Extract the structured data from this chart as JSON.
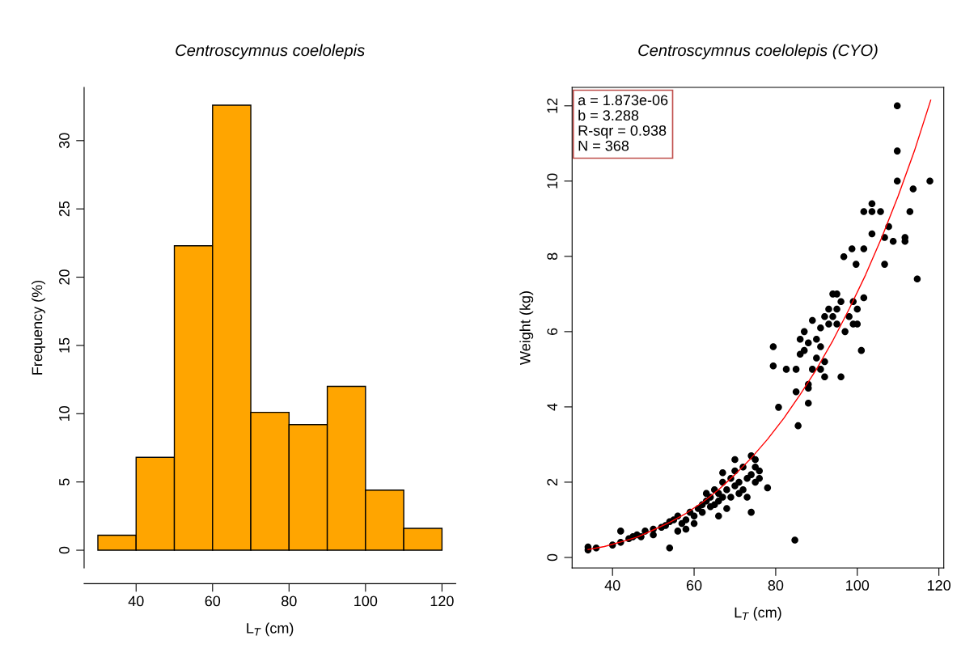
{
  "chart_data": [
    {
      "type": "histogram",
      "title": "Centroscymnus coelolepis",
      "xlabel": "L$_{T}$ (cm)",
      "ylabel": "Frequency (%)",
      "bins": [
        30,
        40,
        50,
        60,
        70,
        80,
        90,
        100,
        110,
        120
      ],
      "values": [
        1.1,
        6.8,
        22.3,
        32.6,
        10.1,
        9.2,
        12.0,
        4.4,
        1.6
      ],
      "color": "#ffa500",
      "xlim": [
        26.4,
        123.6
      ],
      "ylim": [
        -1.3,
        33.9
      ],
      "xticks": [
        40,
        60,
        80,
        100,
        120
      ],
      "yticks": [
        0,
        5,
        10,
        15,
        20,
        25,
        30
      ],
      "grid": false
    },
    {
      "type": "scatter",
      "title": "Centroscymnus coelolepis (CYO)",
      "xlabel": "L$_{T}$ (cm)",
      "ylabel": "Weight (kg)",
      "xlim": [
        30.1,
        121.2
      ],
      "ylim": [
        -0.28,
        12.49
      ],
      "xticks": [
        40,
        60,
        80,
        100,
        120
      ],
      "yticks": [
        0,
        2,
        4,
        6,
        8,
        10,
        12
      ],
      "grid": false,
      "annotations": [
        "a = 1.873e-06",
        "b = 3.288",
        "R-sqr = 0.938",
        "N = 368"
      ],
      "series": [
        {
          "type": "scatter",
          "marker": "circle",
          "color": "#000000",
          "x": [
            34,
            34,
            36,
            40,
            42,
            42,
            44,
            45,
            46,
            47,
            48,
            50,
            50,
            52,
            53,
            54,
            54,
            55,
            56,
            56,
            57,
            58,
            58,
            59,
            60,
            60,
            61,
            62,
            62,
            63,
            63,
            64,
            64,
            65,
            65,
            66,
            66,
            66,
            67,
            67,
            67,
            68,
            68,
            69,
            69,
            70,
            70,
            70,
            71,
            71,
            72,
            72,
            73,
            73,
            74,
            74,
            74,
            75,
            75,
            75,
            76,
            76,
            78,
            79.4,
            79.4,
            80.7,
            82.6,
            84.7,
            85,
            85,
            85.5,
            86,
            86,
            87,
            87,
            88,
            88,
            88,
            88,
            89,
            89,
            90,
            90,
            91,
            91,
            91,
            92,
            92,
            92,
            93,
            93,
            94,
            94,
            95,
            95,
            95,
            96,
            96,
            97,
            96.7,
            98,
            98.7,
            99,
            99,
            99.7,
            100,
            100,
            101,
            101.6,
            101.6,
            101.6,
            103.6,
            103.6,
            103.6,
            105.7,
            106.7,
            106.7,
            107.7,
            108.8,
            109.8,
            109.8,
            109.8,
            111.7,
            111.7,
            112.9,
            113.7,
            114.7,
            117.8
          ],
          "values": [
            0.2,
            0.28,
            0.25,
            0.33,
            0.4,
            0.7,
            0.5,
            0.55,
            0.6,
            0.55,
            0.7,
            0.75,
            0.6,
            0.8,
            0.85,
            0.25,
            0.95,
            1.0,
            0.7,
            1.1,
            0.9,
            1.0,
            0.75,
            1.2,
            1.1,
            0.9,
            1.3,
            1.4,
            1.2,
            1.5,
            1.7,
            1.6,
            1.35,
            1.8,
            1.4,
            1.7,
            1.5,
            1.1,
            2.0,
            1.6,
            2.25,
            1.8,
            1.3,
            2.1,
            1.6,
            2.6,
            1.9,
            2.3,
            1.7,
            2.0,
            2.4,
            1.8,
            2.1,
            1.6,
            2.7,
            2.2,
            1.2,
            2.4,
            2.0,
            2.6,
            2.3,
            2.1,
            1.85,
            5.6,
            5.09,
            3.99,
            5.0,
            0.46,
            5.0,
            4.4,
            3.5,
            5.4,
            5.8,
            5.5,
            6.0,
            5.7,
            4.6,
            4.5,
            4.1,
            5.0,
            6.3,
            5.8,
            5.3,
            6.1,
            5.0,
            5.6,
            6.4,
            5.2,
            4.8,
            6.6,
            6.2,
            7.0,
            6.4,
            6.6,
            7.0,
            6.2,
            6.8,
            4.8,
            6.0,
            7.99,
            6.4,
            8.2,
            6.8,
            6.2,
            7.79,
            6.6,
            6.2,
            5.5,
            9.19,
            8.2,
            6.9,
            9.4,
            9.19,
            8.6,
            9.19,
            8.5,
            7.79,
            8.79,
            8.4,
            12.0,
            10.8,
            10.0,
            8.5,
            8.4,
            9.19,
            9.79,
            7.4,
            10.0
          ]
        },
        {
          "type": "line",
          "color": "#ff0000",
          "x": [
            34,
            38,
            42,
            46,
            50,
            54,
            58,
            62,
            66,
            70,
            74,
            78,
            82,
            86,
            90,
            94,
            98,
            102,
            106,
            110,
            114,
            118
          ],
          "values": [
            0.21,
            0.29,
            0.41,
            0.54,
            0.73,
            0.93,
            1.17,
            1.46,
            1.8,
            2.2,
            2.64,
            3.14,
            3.7,
            4.33,
            5.0,
            5.76,
            6.6,
            7.5,
            8.5,
            9.6,
            10.8,
            12.15
          ]
        }
      ]
    }
  ]
}
